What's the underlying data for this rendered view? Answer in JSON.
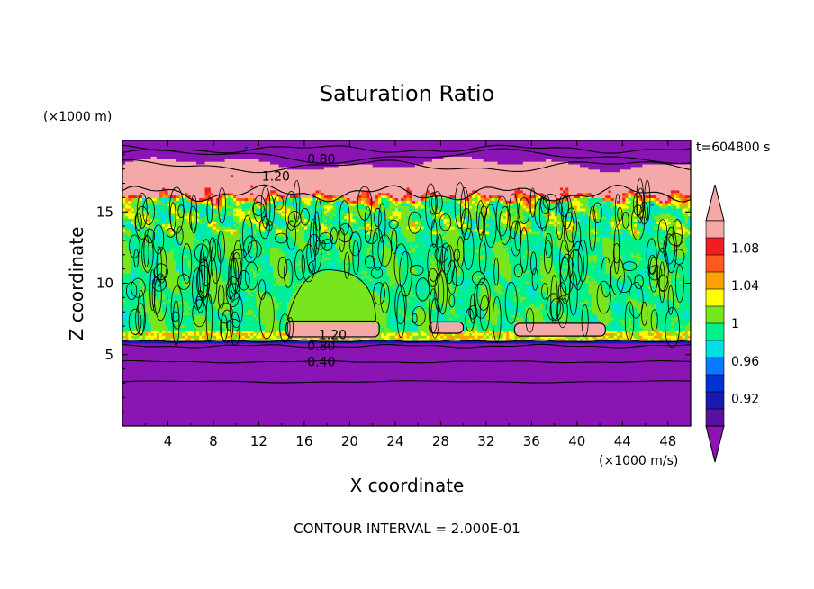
{
  "chart_data": {
    "type": "heatmap",
    "title": "Saturation Ratio",
    "xlabel": "X coordinate",
    "ylabel": "Z coordinate",
    "x_unit": "(×1000 m/s)",
    "y_unit": "(×1000 m)",
    "time_label": "t=604800 s",
    "footer": "CONTOUR INTERVAL = 2.000E-01",
    "xlim": [
      0,
      50
    ],
    "ylim": [
      0,
      20
    ],
    "x_ticks": [
      4,
      8,
      12,
      16,
      20,
      24,
      28,
      32,
      36,
      40,
      44,
      48
    ],
    "y_ticks": [
      5,
      10,
      15
    ],
    "colorbar": {
      "labels": [
        "1.08",
        "1.04",
        "1",
        "0.96",
        "0.92"
      ],
      "label_values": [
        1.08,
        1.04,
        1.0,
        0.96,
        0.92
      ],
      "levels": [
        0.9,
        0.92,
        0.94,
        0.96,
        0.98,
        1.0,
        1.02,
        1.04,
        1.06,
        1.08,
        1.1
      ],
      "colors": [
        "#5a10a0",
        "#1a1ab0",
        "#0032d8",
        "#0a78ff",
        "#00e0e0",
        "#00f08c",
        "#78e61e",
        "#ffff00",
        "#ffa000",
        "#ff5a1e",
        "#f01e1e",
        "#f5a8a8"
      ],
      "under_color": "#8a14b4",
      "over_color": "#f5a8a8"
    },
    "contour_labels": [
      {
        "text": "0.80",
        "x": 17.5,
        "z": 18.7
      },
      {
        "text": "1.20",
        "x": 13.5,
        "z": 17.5
      },
      {
        "text": "1.20",
        "x": 18.5,
        "z": 6.4
      },
      {
        "text": "0.80",
        "x": 17.5,
        "z": 5.6
      },
      {
        "text": "0.40",
        "x": 17.5,
        "z": 4.5
      }
    ],
    "layers": [
      {
        "region": "lower dry layer",
        "z_range": [
          0,
          6
        ],
        "value": "<0.90"
      },
      {
        "region": "mid-level cloud layer",
        "z_range": [
          6,
          15.5
        ],
        "value": "0.98–1.02"
      },
      {
        "region": "supersaturated band",
        "z_range": [
          15.5,
          18.5
        ],
        "value": ">1.10"
      },
      {
        "region": "upper dry layer",
        "z_range": [
          18.5,
          20
        ],
        "value": "<0.90"
      }
    ],
    "patches": [
      {
        "region": "supersaturated lens",
        "x_range": [
          14,
          23
        ],
        "z_range": [
          6.2,
          7.4
        ],
        "value": ">1.10"
      },
      {
        "region": "supersaturated lens",
        "x_range": [
          27,
          30
        ],
        "z_range": [
          6.5,
          7.3
        ],
        "value": ">1.10"
      },
      {
        "region": "supersaturated lens",
        "x_range": [
          34,
          43
        ],
        "z_range": [
          6.3,
          7.3
        ],
        "value": ">1.10"
      },
      {
        "region": "near-saturated dome",
        "x_range": [
          15,
          22
        ],
        "z_range": [
          7.3,
          11
        ],
        "value": "1.00–1.02"
      }
    ]
  }
}
